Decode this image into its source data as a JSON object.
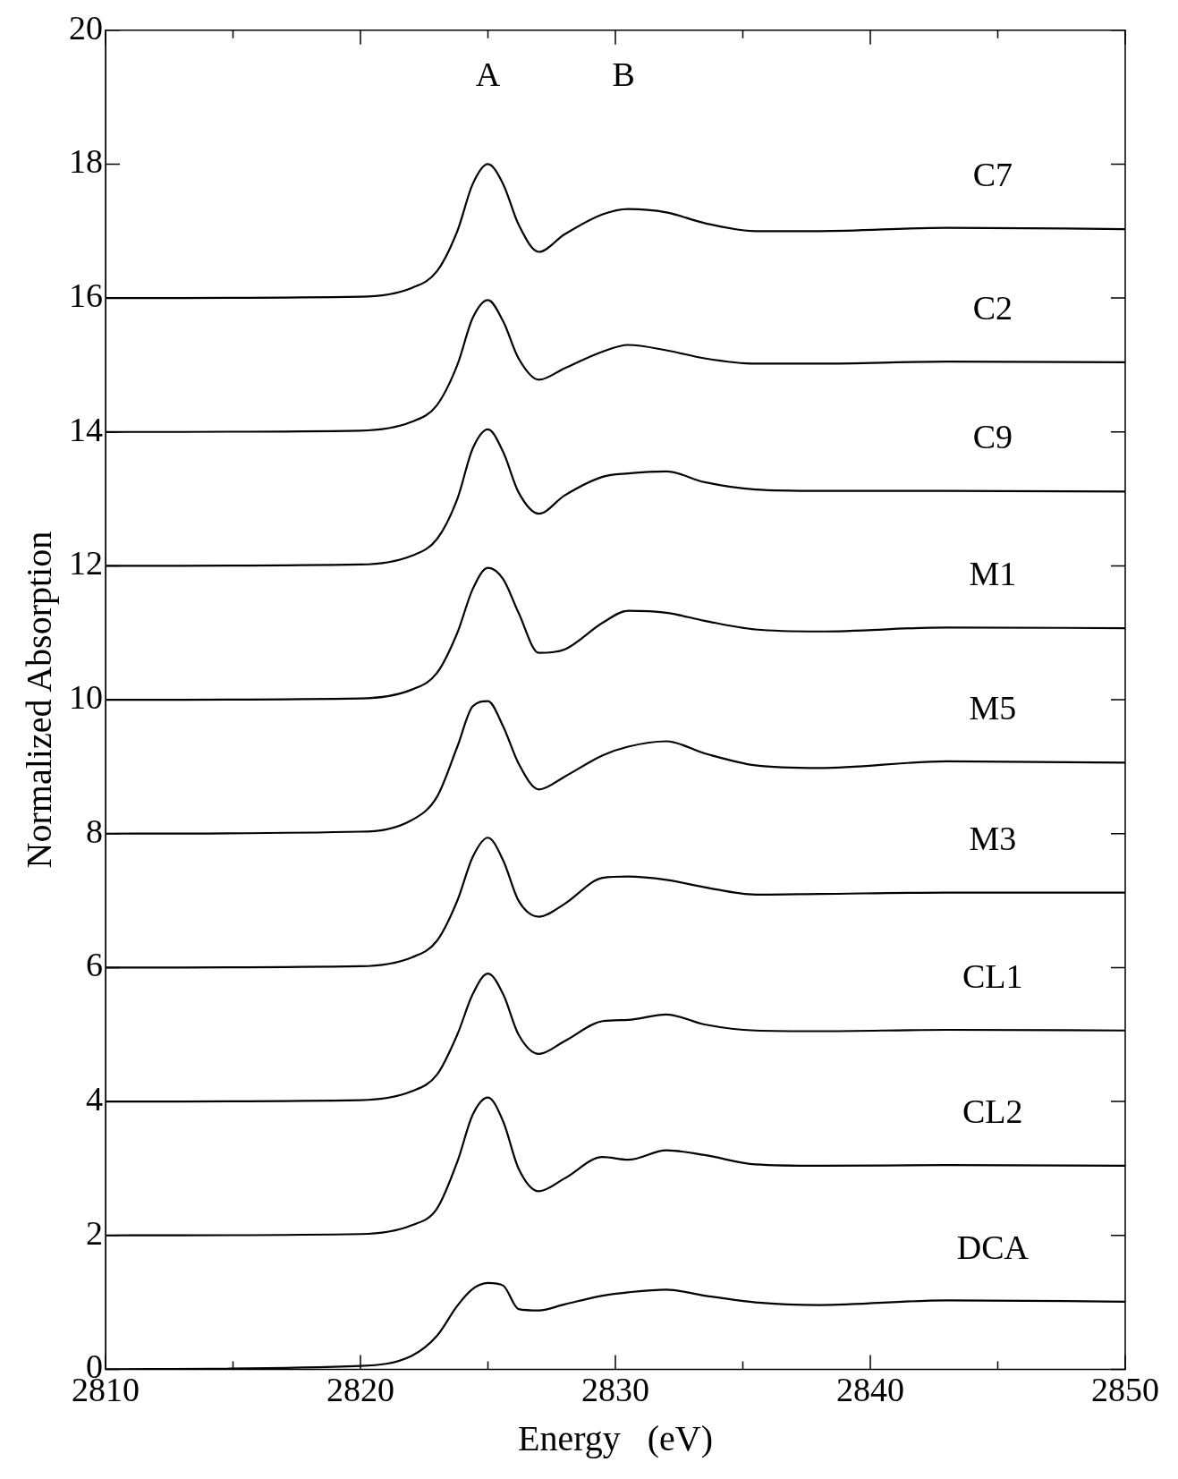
{
  "chart_data": {
    "type": "line",
    "xlabel": "Energy   (eV)",
    "ylabel": "Normalized Absorption",
    "xlim": [
      2810,
      2850
    ],
    "ylim": [
      0,
      20
    ],
    "xticks": [
      2810,
      {
        "value": 2815,
        "label": null
      },
      2820,
      {
        "value": 2825,
        "label": null
      },
      2830,
      {
        "value": 2835,
        "label": null
      },
      2840,
      {
        "value": 2845,
        "label": null
      },
      2850
    ],
    "yticks": [
      0,
      2,
      4,
      6,
      8,
      10,
      12,
      14,
      16,
      18,
      20
    ],
    "grid": false,
    "legend": false,
    "marker": "none",
    "line_style": "solid",
    "x": [
      2810,
      2820,
      2822,
      2823,
      2823.8,
      2824.4,
      2825,
      2825.6,
      2826.2,
      2827,
      2828,
      2829.5,
      2830.5,
      2832,
      2833.5,
      2835.5,
      2838,
      2843,
      2850
    ],
    "annotations": [
      "A",
      "B"
    ],
    "series": [
      {
        "name": "C7",
        "color": "#000000",
        "values": [
          16,
          16.02,
          16.15,
          16.4,
          17.0,
          17.7,
          18.0,
          17.7,
          17.1,
          16.69,
          16.95,
          17.25,
          17.33,
          17.28,
          17.12,
          17.0,
          17.0,
          17.05,
          17.03
        ]
      },
      {
        "name": "C2",
        "color": "#000000",
        "values": [
          14,
          14.02,
          14.15,
          14.4,
          15.0,
          15.7,
          15.97,
          15.65,
          15.1,
          14.78,
          14.95,
          15.2,
          15.3,
          15.22,
          15.1,
          15.02,
          15.02,
          15.05,
          15.04
        ]
      },
      {
        "name": "C9",
        "color": "#000000",
        "values": [
          12,
          12.02,
          12.15,
          12.4,
          13.0,
          13.75,
          14.04,
          13.7,
          13.1,
          12.78,
          13.05,
          13.33,
          13.38,
          13.41,
          13.25,
          13.14,
          13.12,
          13.12,
          13.11
        ]
      },
      {
        "name": "M1",
        "color": "#000000",
        "values": [
          10,
          10.02,
          10.15,
          10.4,
          11.0,
          11.65,
          11.97,
          11.8,
          11.3,
          10.7,
          10.75,
          11.15,
          11.33,
          11.3,
          11.18,
          11.05,
          11.02,
          11.08,
          11.07
        ]
      },
      {
        "name": "M5",
        "color": "#000000",
        "values": [
          8,
          8.03,
          8.2,
          8.55,
          9.3,
          9.9,
          9.98,
          9.6,
          9.05,
          8.66,
          8.85,
          9.17,
          9.3,
          9.38,
          9.2,
          9.02,
          8.98,
          9.08,
          9.06
        ]
      },
      {
        "name": "M3",
        "color": "#000000",
        "values": [
          6,
          6.02,
          6.15,
          6.4,
          7.0,
          7.65,
          7.94,
          7.6,
          7.0,
          6.76,
          6.95,
          7.34,
          7.36,
          7.31,
          7.2,
          7.09,
          7.1,
          7.12,
          7.12
        ]
      },
      {
        "name": "CL1",
        "color": "#000000",
        "values": [
          4,
          4.02,
          4.15,
          4.4,
          5.0,
          5.6,
          5.91,
          5.6,
          5.0,
          4.71,
          4.9,
          5.2,
          5.22,
          5.3,
          5.15,
          5.06,
          5.05,
          5.07,
          5.06
        ]
      },
      {
        "name": "CL2",
        "color": "#000000",
        "values": [
          2,
          2.02,
          2.15,
          2.4,
          3.1,
          3.8,
          4.06,
          3.7,
          3.0,
          2.66,
          2.85,
          3.17,
          3.13,
          3.27,
          3.2,
          3.06,
          3.04,
          3.05,
          3.04
        ]
      },
      {
        "name": "DCA",
        "color": "#000000",
        "values": [
          0,
          0.05,
          0.2,
          0.5,
          0.95,
          1.2,
          1.29,
          1.25,
          0.9,
          0.88,
          0.97,
          1.1,
          1.15,
          1.19,
          1.1,
          1.0,
          0.96,
          1.03,
          1.01
        ]
      }
    ]
  }
}
